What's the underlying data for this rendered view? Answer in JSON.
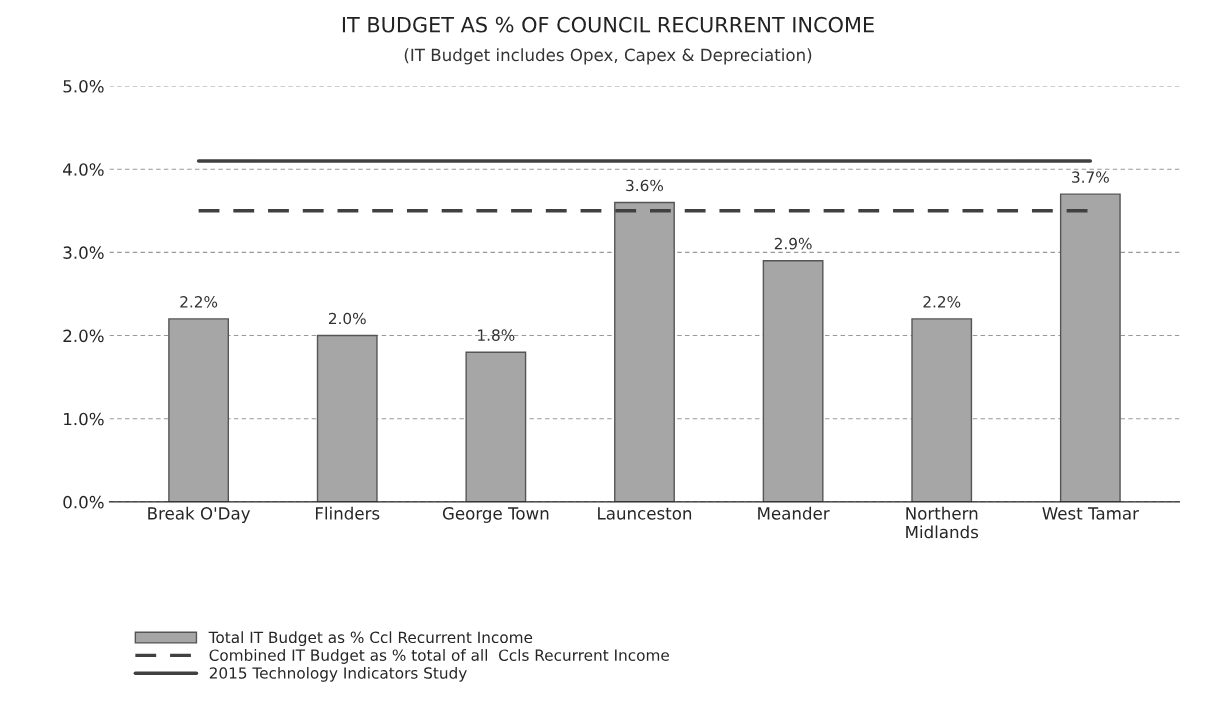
{
  "chart_data": {
    "type": "bar",
    "title": "IT BUDGET AS % OF COUNCIL RECURRENT INCOME",
    "subtitle": "(IT Budget includes Opex, Capex & Depreciation)",
    "categories": [
      "Break O'Day",
      "Flinders",
      "George Town",
      "Launceston",
      "Meander",
      "Northern\nMidlands",
      "West Tamar"
    ],
    "series": [
      {
        "name": "Total IT Budget as % Ccl Recurrent Income",
        "color": "#a6a6a6",
        "values": [
          2.2,
          2.0,
          1.8,
          3.6,
          2.9,
          2.2,
          3.7
        ],
        "value_labels": [
          "2.2%",
          "2.0%",
          "1.8%",
          "3.6%",
          "2.9%",
          "2.2%",
          "3.7%"
        ]
      },
      {
        "name": "Combined IT Budget as % total of all  Ccls Recurrent Income",
        "type": "line",
        "line_style": "dashed",
        "color": "#404040",
        "values": [
          3.5,
          3.5,
          3.5,
          3.5,
          3.5,
          3.5,
          3.5
        ]
      },
      {
        "name": "2015 Technology Indicators Study",
        "type": "line",
        "line_style": "solid",
        "color": "#404040",
        "values": [
          4.1,
          4.1,
          4.1,
          4.1,
          4.1,
          4.1,
          4.1
        ]
      }
    ],
    "ylim": [
      0,
      5
    ],
    "yticks": [
      {
        "value": 0,
        "label": "0.0%"
      },
      {
        "value": 1,
        "label": "1.0%"
      },
      {
        "value": 2,
        "label": "2.0%"
      },
      {
        "value": 3,
        "label": "3.0%"
      },
      {
        "value": 4,
        "label": "4.0%"
      },
      {
        "value": 5,
        "label": "5.0%"
      }
    ],
    "grid": "y",
    "legend": "bottom left"
  }
}
